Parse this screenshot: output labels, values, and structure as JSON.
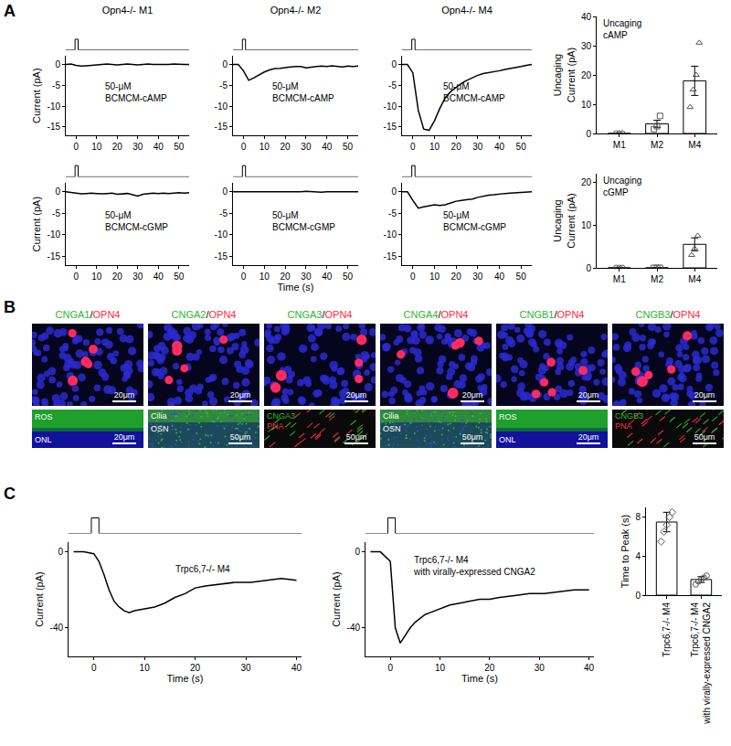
{
  "panel_labels": [
    "A",
    "B",
    "C"
  ],
  "chart_data": [
    {
      "type": "line",
      "title": "Opn4-/- M1",
      "annotation": "50-μM\nBCMCM-cAMP",
      "y_label": "Current (pA)",
      "color": "#000000",
      "x": [
        -5,
        -2.5,
        0,
        2.5,
        5,
        7.5,
        10,
        12.5,
        15,
        17.5,
        20,
        22.5,
        25,
        27.5,
        30,
        32.5,
        35,
        37.5,
        40,
        42.5,
        45,
        47.5,
        50,
        52.5,
        55
      ],
      "values": [
        0,
        0.1,
        -0.2,
        -0.4,
        -0.3,
        -0.2,
        -0.1,
        0,
        0.1,
        0,
        -0.1,
        0,
        0.1,
        0,
        -0.1,
        0,
        0.1,
        0,
        0,
        -0.1,
        0,
        0.1,
        0,
        0,
        0
      ],
      "xlim": [
        -5,
        55
      ],
      "xticks": [
        0,
        10,
        20,
        30,
        40,
        50
      ],
      "ylim": [
        -17,
        2
      ],
      "yticks": [
        -15,
        -10,
        -5,
        0
      ],
      "stimulus": {
        "x": [
          -5,
          -0.5,
          -0.5,
          1,
          1,
          55
        ],
        "values": [
          0,
          0,
          1,
          1,
          0,
          0
        ],
        "ylim": [
          0,
          1.5
        ]
      }
    },
    {
      "type": "line",
      "title": "Opn4-/- M2",
      "annotation": "50-μM\nBCMCM-cAMP",
      "color": "#000000",
      "x": [
        -5,
        -2.5,
        0,
        2.5,
        5,
        7.5,
        10,
        12.5,
        15,
        17.5,
        20,
        22.5,
        25,
        27.5,
        30,
        32.5,
        35,
        37.5,
        40,
        42.5,
        45,
        47.5,
        50,
        52.5,
        55
      ],
      "values": [
        0,
        0,
        -1.5,
        -3.8,
        -3.2,
        -2.5,
        -1.8,
        -1.3,
        -1,
        -0.9,
        -0.7,
        -0.6,
        -0.5,
        -0.5,
        -0.8,
        -0.6,
        -0.5,
        -0.4,
        -0.5,
        -0.3,
        -0.5,
        -0.6,
        -0.4,
        -0.5,
        -0.4
      ],
      "xlim": [
        -5,
        55
      ],
      "xticks": [
        0,
        10,
        20,
        30,
        40,
        50
      ],
      "ylim": [
        -17,
        2
      ],
      "yticks": [
        -15,
        -10,
        -5,
        0
      ],
      "stimulus": {
        "x": [
          -5,
          -0.5,
          -0.5,
          1,
          1,
          55
        ],
        "values": [
          0,
          0,
          1,
          1,
          0,
          0
        ],
        "ylim": [
          0,
          1.5
        ]
      }
    },
    {
      "type": "line",
      "title": "Opn4-/- M4",
      "annotation": "50-μM\nBCMCM-cAMP",
      "color": "#000000",
      "x": [
        -5,
        -2.5,
        0,
        2.5,
        5,
        7.5,
        10,
        12.5,
        15,
        17.5,
        20,
        22.5,
        25,
        27.5,
        30,
        32.5,
        35,
        37.5,
        40,
        42.5,
        45,
        47.5,
        50,
        52.5,
        55
      ],
      "values": [
        0,
        0,
        -2,
        -11,
        -15.5,
        -15.8,
        -13.5,
        -10.5,
        -8,
        -6.5,
        -5.5,
        -4.5,
        -3.8,
        -3.2,
        -2.6,
        -2.2,
        -2,
        -1.8,
        -1.5,
        -1.2,
        -1,
        -0.8,
        -0.5,
        -0.2,
        0
      ],
      "xlim": [
        -5,
        55
      ],
      "xticks": [
        0,
        10,
        20,
        30,
        40,
        50
      ],
      "ylim": [
        -17,
        2
      ],
      "yticks": [
        -15,
        -10,
        -5,
        0
      ],
      "stimulus": {
        "x": [
          -5,
          -0.5,
          -0.5,
          1,
          1,
          55
        ],
        "values": [
          0,
          0,
          1,
          1,
          0,
          0
        ],
        "ylim": [
          0,
          1.5
        ]
      }
    },
    {
      "type": "line",
      "annotation": "50-μM\nBCMCM-cGMP",
      "y_label": "Current (pA)",
      "color": "#000000",
      "x": [
        -5,
        -2.5,
        0,
        2.5,
        5,
        7.5,
        10,
        12.5,
        15,
        17.5,
        20,
        22.5,
        25,
        27.5,
        30,
        32.5,
        35,
        37.5,
        40,
        42.5,
        45,
        47.5,
        50,
        52.5,
        55
      ],
      "values": [
        0,
        -0.2,
        -0.3,
        -0.5,
        -0.4,
        -0.3,
        -0.4,
        -0.5,
        -0.4,
        -0.3,
        -0.6,
        -0.5,
        -0.4,
        -0.7,
        -1,
        -0.6,
        -0.4,
        -0.3,
        -0.4,
        -0.3,
        -0.4,
        -0.3,
        -0.2,
        -0.3,
        -0.2
      ],
      "xlim": [
        -5,
        55
      ],
      "xticks": [
        0,
        10,
        20,
        30,
        40,
        50
      ],
      "ylim": [
        -17,
        2
      ],
      "yticks": [
        -15,
        -10,
        -5,
        0
      ],
      "stimulus": {
        "x": [
          -5,
          -0.5,
          -0.5,
          1,
          1,
          55
        ],
        "values": [
          0,
          0,
          1,
          1,
          0,
          0
        ],
        "ylim": [
          0,
          1.5
        ]
      }
    },
    {
      "type": "line",
      "annotation": "50-μM\nBCMCM-cGMP",
      "x_label": "Time (s)",
      "color": "#000000",
      "x": [
        -5,
        -2.5,
        0,
        2.5,
        5,
        7.5,
        10,
        12.5,
        15,
        17.5,
        20,
        22.5,
        25,
        27.5,
        30,
        32.5,
        35,
        37.5,
        40,
        42.5,
        45,
        47.5,
        50,
        52.5,
        55
      ],
      "values": [
        0,
        0,
        -0.1,
        0,
        -0.1,
        0,
        0,
        -0.1,
        0,
        0,
        0,
        -0.1,
        0,
        0,
        0.1,
        0,
        0,
        -0.1,
        0,
        0,
        0,
        0,
        -0.1,
        0,
        0
      ],
      "xlim": [
        -5,
        55
      ],
      "xticks": [
        0,
        10,
        20,
        30,
        40,
        50
      ],
      "ylim": [
        -17,
        2
      ],
      "yticks": [
        -15,
        -10,
        -5,
        0
      ],
      "stimulus": {
        "x": [
          -5,
          -0.5,
          -0.5,
          1,
          1,
          55
        ],
        "values": [
          0,
          0,
          1,
          1,
          0,
          0
        ],
        "ylim": [
          0,
          1.5
        ]
      }
    },
    {
      "type": "line",
      "annotation": "50-μM\nBCMCM-cGMP",
      "color": "#000000",
      "x": [
        -5,
        -2.5,
        0,
        2.5,
        5,
        7.5,
        10,
        12.5,
        15,
        17.5,
        20,
        22.5,
        25,
        27.5,
        30,
        32.5,
        35,
        37.5,
        40,
        42.5,
        45,
        47.5,
        50,
        52.5,
        55
      ],
      "values": [
        0,
        0,
        -2,
        -3.8,
        -3.5,
        -3.3,
        -3,
        -3.2,
        -3,
        -2.6,
        -2.2,
        -2,
        -1.8,
        -1.7,
        -1.3,
        -1,
        -0.8,
        -0.7,
        -0.5,
        -0.4,
        -0.3,
        -0.2,
        -0.2,
        -0.1,
        0
      ],
      "xlim": [
        -5,
        55
      ],
      "xticks": [
        0,
        10,
        20,
        30,
        40,
        50
      ],
      "ylim": [
        -17,
        2
      ],
      "yticks": [
        -15,
        -10,
        -5,
        0
      ],
      "stimulus": {
        "x": [
          -5,
          -0.5,
          -0.5,
          1,
          1,
          55
        ],
        "values": [
          0,
          0,
          1,
          1,
          0,
          0
        ],
        "ylim": [
          0,
          1.5
        ]
      }
    },
    {
      "type": "bar",
      "title": "Uncaging\ncAMP",
      "y_label": "Uncaging\nCurrent (pA)",
      "color": "#000000",
      "categories": [
        "M1",
        "M2",
        "M4"
      ],
      "values": [
        0,
        3.3,
        18
      ],
      "error": [
        0,
        1.2,
        5
      ],
      "points": [
        [
          0,
          0,
          0
        ],
        [
          1.5,
          2.5,
          6
        ],
        [
          9,
          15,
          20,
          31
        ]
      ],
      "marker": [
        "circle",
        "square",
        "triangle-up"
      ],
      "ylim": [
        0,
        40
      ],
      "yticks": [
        0,
        10,
        20,
        30,
        40
      ]
    },
    {
      "type": "bar",
      "title": "Uncaging\ncGMP",
      "y_label": "Uncaging\nCurrent (pA)",
      "color": "#000000",
      "categories": [
        "M1",
        "M2",
        "M4"
      ],
      "values": [
        0,
        0,
        5.5
      ],
      "error": [
        0,
        0,
        1.5
      ],
      "points": [
        [
          0,
          0,
          0
        ],
        [
          0,
          0,
          0
        ],
        [
          3,
          4.5,
          7.5
        ]
      ],
      "marker": [
        "circle",
        "square",
        "triangle-up"
      ],
      "ylim": [
        0,
        22
      ],
      "yticks": [
        0,
        10,
        20
      ]
    },
    {
      "type": "line",
      "annotation": "Trpc6,7-/- M4",
      "y_label": "Current (pA)",
      "x_label": "Time (s)",
      "color": "#000000",
      "x": [
        -4,
        -2,
        0,
        1,
        2,
        3,
        4,
        5,
        6,
        7,
        8,
        10,
        12,
        14,
        16,
        18,
        20,
        22,
        25,
        28,
        31,
        34,
        37,
        40
      ],
      "values": [
        0,
        0,
        -1,
        -5,
        -12,
        -20,
        -26,
        -29,
        -31,
        -32,
        -31,
        -30,
        -29,
        -27,
        -24,
        -22,
        -19,
        -18,
        -17,
        -16,
        -16,
        -15,
        -14,
        -15
      ],
      "xlim": [
        -5,
        41
      ],
      "xticks": [
        0,
        10,
        20,
        30,
        40
      ],
      "ylim": [
        -55,
        5
      ],
      "yticks": [
        -40,
        0
      ],
      "stimulus": {
        "x": [
          -5,
          -0.5,
          -0.5,
          1,
          1,
          41
        ],
        "values": [
          0,
          0,
          1,
          1,
          0,
          0
        ],
        "ylim": [
          0,
          1.5
        ]
      }
    },
    {
      "type": "line",
      "annotation": "Trpc6,7-/- M4\nwith virally-expressed CNGA2",
      "y_label": "Current (pA)",
      "x_label": "Time (s)",
      "color": "#000000",
      "x": [
        -4,
        -2,
        0,
        1,
        2,
        3,
        4,
        5,
        6,
        7,
        8,
        10,
        12,
        14,
        16,
        18,
        20,
        22,
        25,
        28,
        31,
        34,
        37,
        40
      ],
      "values": [
        0,
        0,
        -5,
        -40,
        -48,
        -44,
        -40,
        -37,
        -35,
        -33,
        -32,
        -30,
        -28,
        -27,
        -26,
        -25,
        -25,
        -24,
        -23,
        -22,
        -22,
        -21,
        -20,
        -20
      ],
      "xlim": [
        -5,
        41
      ],
      "xticks": [
        0,
        10,
        20,
        30,
        40
      ],
      "ylim": [
        -55,
        5
      ],
      "yticks": [
        -40,
        0
      ],
      "stimulus": {
        "x": [
          -5,
          -0.5,
          -0.5,
          1,
          1,
          41
        ],
        "values": [
          0,
          0,
          1,
          1,
          0,
          0
        ],
        "ylim": [
          0,
          1.5
        ]
      }
    },
    {
      "type": "bar",
      "y_label": "Time to Peak (s)",
      "color": "#000000",
      "categories": [
        "Trpc6,7-/- M4",
        "Trpc6,7-/- M4\nwith virally-expressed CNGA2"
      ],
      "values": [
        7.5,
        1.6
      ],
      "error": [
        1,
        0.3
      ],
      "points": [
        [
          5.5,
          6.5,
          7.2,
          8,
          8.5
        ],
        [
          1.1,
          1.4,
          1.6,
          1.8,
          2
        ]
      ],
      "marker": [
        "diamond",
        "circle"
      ],
      "ylim": [
        0,
        9
      ],
      "yticks": [
        0,
        4,
        8
      ]
    }
  ],
  "panel_B": {
    "separator": "/",
    "colors": [
      "#2db82d",
      "#ff2a40"
    ],
    "columns": [
      {
        "label": [
          "CNGA1",
          "OPN4"
        ],
        "scale": "20μm",
        "control": {
          "style": "retina",
          "labels": [
            "ROS",
            "ONL"
          ],
          "scale": "20μm"
        }
      },
      {
        "label": [
          "CNGA2",
          "OPN4"
        ],
        "scale": "20μm",
        "control": {
          "style": "olfactory",
          "labels": [
            "Cilia",
            "OSN"
          ],
          "scale": "50μm"
        }
      },
      {
        "label": [
          "CNGA3",
          "OPN4"
        ],
        "scale": "20μm",
        "control": {
          "style": "cone",
          "labels": [
            "CNGA3",
            "PNA"
          ],
          "scale": "50μm"
        }
      },
      {
        "label": [
          "CNGA4",
          "OPN4"
        ],
        "scale": "20μm",
        "control": {
          "style": "olfactory",
          "labels": [
            "Cilia",
            "OSN"
          ],
          "scale": "50μm"
        }
      },
      {
        "label": [
          "CNGB1",
          "OPN4"
        ],
        "scale": "20μm",
        "control": {
          "style": "retina",
          "labels": [
            "ROS",
            "ONL"
          ],
          "scale": "20μm"
        }
      },
      {
        "label": [
          "CNGB3",
          "OPN4"
        ],
        "scale": "20μm",
        "control": {
          "style": "cone",
          "labels": [
            "CNGB3",
            "PNA"
          ],
          "scale": "50μm"
        }
      }
    ]
  }
}
